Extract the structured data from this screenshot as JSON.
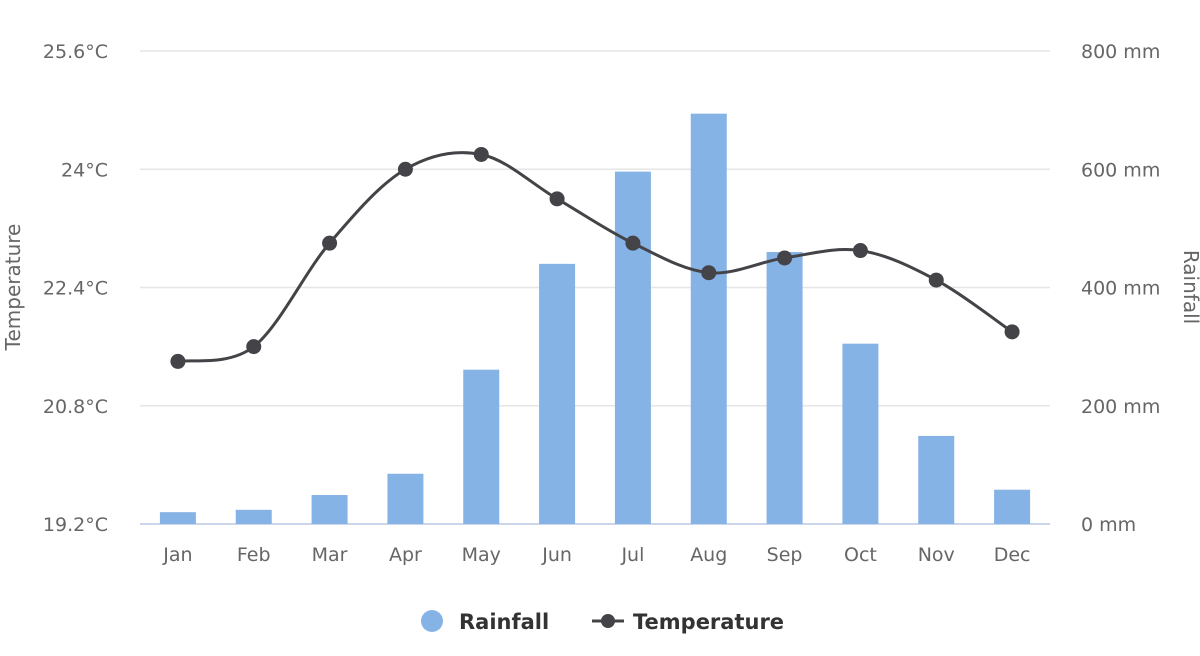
{
  "chart_data": {
    "type": "bar+line",
    "categories": [
      "Jan",
      "Feb",
      "Mar",
      "Apr",
      "May",
      "Jun",
      "Jul",
      "Aug",
      "Sep",
      "Oct",
      "Nov",
      "Dec"
    ],
    "series": [
      {
        "name": "Rainfall",
        "type": "bar",
        "axis": "right",
        "color": "#86b3e6",
        "values": [
          20,
          24,
          49,
          85,
          261,
          440,
          596,
          694,
          460,
          305,
          149,
          58
        ]
      },
      {
        "name": "Temperature",
        "type": "line",
        "axis": "left",
        "color": "#434348",
        "values": [
          21.4,
          21.6,
          23.0,
          24.0,
          24.2,
          23.6,
          23.0,
          22.6,
          22.8,
          22.9,
          22.5,
          21.8
        ]
      }
    ],
    "left_axis": {
      "label": "Temperature",
      "range": [
        19.2,
        25.6
      ],
      "ticks": [
        "19.2°C",
        "20.8°C",
        "22.4°C",
        "24°C",
        "25.6°C"
      ]
    },
    "right_axis": {
      "label": "Rainfall",
      "range": [
        0,
        800
      ],
      "ticks": [
        "0 mm",
        "200 mm",
        "400 mm",
        "600 mm",
        "800 mm"
      ]
    },
    "grid": true,
    "legend": {
      "placement": "bottom-center",
      "items": [
        "Rainfall",
        "Temperature"
      ]
    }
  }
}
